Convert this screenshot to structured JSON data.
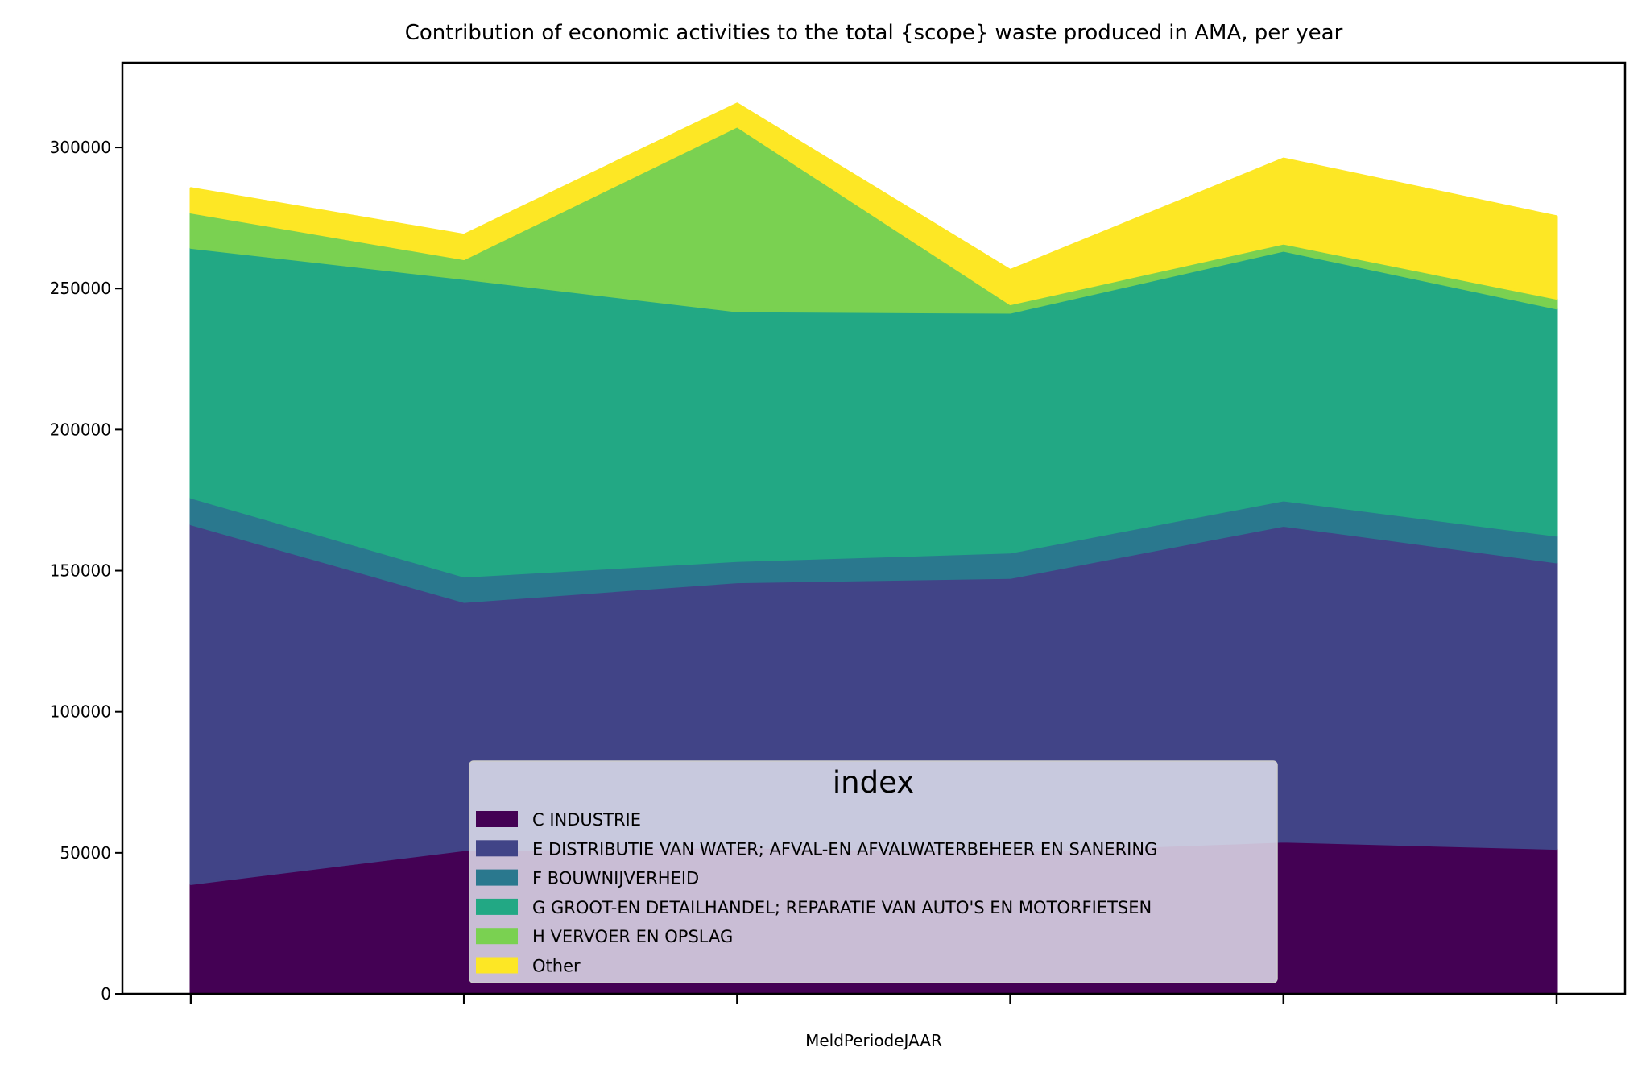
{
  "chart_data": {
    "type": "area",
    "stacked": true,
    "title": "Contribution of economic activities to the total {scope} waste produced in AMA, per year",
    "xlabel": "MeldPeriodeJAAR",
    "ylabel": "",
    "ylim": [
      0,
      330000
    ],
    "yticks": [
      0,
      50000,
      100000,
      150000,
      200000,
      250000,
      300000
    ],
    "ytick_labels": [
      "0",
      "50000",
      "100000",
      "150000",
      "200000",
      "250000",
      "300000"
    ],
    "x": [
      0,
      1,
      2,
      3,
      4,
      5
    ],
    "xtick_labels": [
      "",
      "",
      "",
      "",
      "",
      ""
    ],
    "grid": false,
    "legend": {
      "title": "index",
      "placement": "lower center"
    },
    "series": [
      {
        "name": "C INDUSTRIE",
        "color": "#440154",
        "values": [
          39000,
          51000,
          52000,
          50500,
          54000,
          51500
        ]
      },
      {
        "name": "E DISTRIBUTIE VAN WATER; AFVAL-EN AFVALWATERBEHEER EN SANERING",
        "color": "#414487",
        "values": [
          127500,
          88000,
          94000,
          97000,
          112000,
          101500
        ]
      },
      {
        "name": "F BOUWNIJVERHEID",
        "color": "#2a788e",
        "values": [
          9500,
          9000,
          7500,
          9000,
          9000,
          9500
        ]
      },
      {
        "name": "G GROOT-EN DETAILHANDEL; REPARATIE VAN AUTO'S EN MOTORFIETSEN",
        "color": "#22a884",
        "values": [
          88500,
          105500,
          88500,
          85000,
          88500,
          80500
        ]
      },
      {
        "name": "H VERVOER EN OPSLAG",
        "color": "#7ad151",
        "values": [
          12500,
          7000,
          65500,
          3000,
          2500,
          3500
        ]
      },
      {
        "name": "Other",
        "color": "#fde725",
        "values": [
          8500,
          8500,
          8000,
          12000,
          30000,
          29000
        ]
      }
    ]
  }
}
